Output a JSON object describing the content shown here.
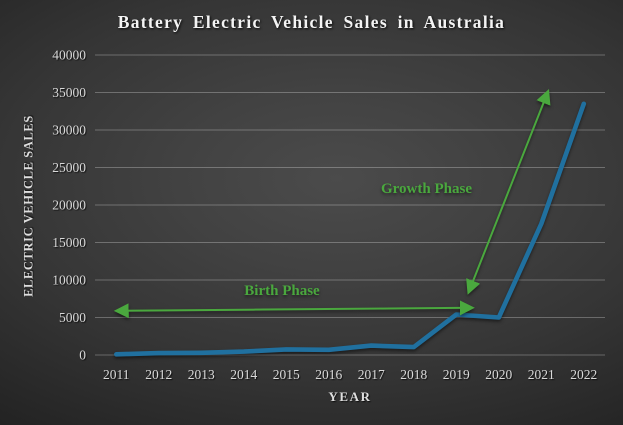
{
  "colors": {
    "line": "#20709f",
    "annotation": "#4aa83e",
    "tick_text": "#d9d9d9",
    "grid": "rgba(255,255,255,0.27)",
    "title_text": "#f4f4f4"
  },
  "chart_data": {
    "type": "line",
    "title": "Battery Electric Vehicle Sales in Australia",
    "xlabel": "YEAR",
    "ylabel": "ELECTRIC VEHICLE SALES",
    "categories": [
      "2011",
      "2012",
      "2013",
      "2014",
      "2015",
      "2016",
      "2017",
      "2018",
      "2019",
      "2020",
      "2021",
      "2022"
    ],
    "values": [
      100,
      250,
      300,
      450,
      750,
      700,
      1250,
      1050,
      5400,
      5000,
      17500,
      33500
    ],
    "ylim": [
      0,
      40000
    ],
    "ytick_step": 5000,
    "ytick_labels": [
      "0",
      "5000",
      "10000",
      "15000",
      "20000",
      "25000",
      "30000",
      "35000",
      "40000"
    ],
    "grid": true,
    "legend": "none",
    "annotations": [
      {
        "label": "Birth Phase",
        "label_pos": {
          "year": 2014.9,
          "value": 8700
        },
        "arrow": {
          "from": {
            "year": 2011.03,
            "value": 5900
          },
          "to": {
            "year": 2019.35,
            "value": 6300
          },
          "heads": "both"
        }
      },
      {
        "label": "Growth Phase",
        "label_pos": {
          "year": 2018.3,
          "value": 22300
        },
        "arrow": {
          "from": {
            "year": 2019.3,
            "value": 8500
          },
          "to": {
            "year": 2021.15,
            "value": 35000
          },
          "heads": "both"
        }
      }
    ]
  }
}
